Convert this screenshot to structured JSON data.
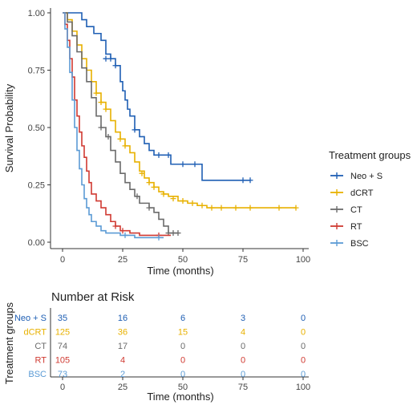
{
  "chart_data": [
    {
      "type": "line",
      "subtype": "kaplan-meier",
      "xlabel": "Time (months)",
      "ylabel": "Survival Probability",
      "xlim": [
        0,
        100
      ],
      "ylim": [
        0,
        1
      ],
      "x_ticks": [
        "0",
        "25",
        "50",
        "75",
        "100"
      ],
      "y_ticks": [
        "0.00",
        "0.25",
        "0.50",
        "0.75",
        "1.00"
      ],
      "x_tick_values": [
        0,
        25,
        50,
        75,
        100
      ],
      "y_tick_values": [
        0,
        0.25,
        0.5,
        0.75,
        1.0
      ],
      "grid": false,
      "legend_title": "Treatment groups",
      "legend_position": "right",
      "series": [
        {
          "name": "Neo + S",
          "color": "#1f5fb4",
          "steps": [
            [
              0,
              1.0
            ],
            [
              3,
              1.0
            ],
            [
              8,
              0.97
            ],
            [
              10,
              0.94
            ],
            [
              13,
              0.91
            ],
            [
              16,
              0.88
            ],
            [
              18,
              0.82
            ],
            [
              20,
              0.8
            ],
            [
              22,
              0.77
            ],
            [
              24,
              0.7
            ],
            [
              25,
              0.66
            ],
            [
              26,
              0.62
            ],
            [
              27,
              0.58
            ],
            [
              28,
              0.55
            ],
            [
              30,
              0.49
            ],
            [
              32,
              0.46
            ],
            [
              34,
              0.43
            ],
            [
              36,
              0.4
            ],
            [
              38,
              0.38
            ],
            [
              45,
              0.34
            ],
            [
              58,
              0.27
            ],
            [
              78,
              0.27
            ]
          ],
          "censored": [
            [
              18,
              0.8
            ],
            [
              20,
              0.8
            ],
            [
              22,
              0.77
            ],
            [
              30,
              0.49
            ],
            [
              40,
              0.38
            ],
            [
              44,
              0.38
            ],
            [
              50,
              0.34
            ],
            [
              55,
              0.34
            ],
            [
              75,
              0.27
            ],
            [
              78,
              0.27
            ]
          ]
        },
        {
          "name": "dCRT",
          "color": "#e8b100",
          "steps": [
            [
              0,
              1.0
            ],
            [
              2,
              0.97
            ],
            [
              4,
              0.92
            ],
            [
              6,
              0.86
            ],
            [
              8,
              0.8
            ],
            [
              10,
              0.75
            ],
            [
              12,
              0.7
            ],
            [
              14,
              0.65
            ],
            [
              16,
              0.61
            ],
            [
              18,
              0.58
            ],
            [
              20,
              0.53
            ],
            [
              22,
              0.48
            ],
            [
              24,
              0.45
            ],
            [
              26,
              0.42
            ],
            [
              28,
              0.39
            ],
            [
              30,
              0.35
            ],
            [
              32,
              0.31
            ],
            [
              34,
              0.28
            ],
            [
              36,
              0.26
            ],
            [
              38,
              0.24
            ],
            [
              40,
              0.22
            ],
            [
              42,
              0.21
            ],
            [
              44,
              0.2
            ],
            [
              48,
              0.18
            ],
            [
              52,
              0.17
            ],
            [
              56,
              0.16
            ],
            [
              60,
              0.15
            ],
            [
              97,
              0.15
            ]
          ],
          "censored": [
            [
              14,
              0.65
            ],
            [
              16,
              0.61
            ],
            [
              18,
              0.58
            ],
            [
              24,
              0.45
            ],
            [
              26,
              0.42
            ],
            [
              33,
              0.3
            ],
            [
              36,
              0.26
            ],
            [
              38,
              0.24
            ],
            [
              42,
              0.21
            ],
            [
              46,
              0.19
            ],
            [
              50,
              0.18
            ],
            [
              54,
              0.17
            ],
            [
              58,
              0.16
            ],
            [
              62,
              0.15
            ],
            [
              66,
              0.15
            ],
            [
              72,
              0.15
            ],
            [
              78,
              0.15
            ],
            [
              90,
              0.15
            ],
            [
              97,
              0.15
            ]
          ]
        },
        {
          "name": "CT",
          "color": "#6b6b6b",
          "steps": [
            [
              0,
              1.0
            ],
            [
              2,
              0.96
            ],
            [
              4,
              0.9
            ],
            [
              6,
              0.83
            ],
            [
              8,
              0.76
            ],
            [
              10,
              0.7
            ],
            [
              12,
              0.63
            ],
            [
              14,
              0.55
            ],
            [
              16,
              0.5
            ],
            [
              18,
              0.46
            ],
            [
              20,
              0.4
            ],
            [
              22,
              0.35
            ],
            [
              24,
              0.3
            ],
            [
              26,
              0.26
            ],
            [
              28,
              0.23
            ],
            [
              30,
              0.2
            ],
            [
              32,
              0.17
            ],
            [
              36,
              0.15
            ],
            [
              38,
              0.13
            ],
            [
              40,
              0.1
            ],
            [
              42,
              0.07
            ],
            [
              44,
              0.04
            ],
            [
              48,
              0.04
            ]
          ],
          "censored": [
            [
              16,
              0.5
            ],
            [
              19,
              0.46
            ],
            [
              31,
              0.2
            ],
            [
              36,
              0.15
            ],
            [
              44,
              0.04
            ],
            [
              46,
              0.04
            ],
            [
              48,
              0.04
            ]
          ]
        },
        {
          "name": "RT",
          "color": "#d03a32",
          "steps": [
            [
              0,
              1.0
            ],
            [
              1,
              0.95
            ],
            [
              2,
              0.88
            ],
            [
              3,
              0.8
            ],
            [
              4,
              0.72
            ],
            [
              5,
              0.62
            ],
            [
              6,
              0.55
            ],
            [
              7,
              0.48
            ],
            [
              8,
              0.42
            ],
            [
              9,
              0.37
            ],
            [
              10,
              0.31
            ],
            [
              11,
              0.26
            ],
            [
              12,
              0.21
            ],
            [
              14,
              0.18
            ],
            [
              16,
              0.15
            ],
            [
              18,
              0.12
            ],
            [
              20,
              0.09
            ],
            [
              22,
              0.07
            ],
            [
              24,
              0.05
            ],
            [
              28,
              0.04
            ],
            [
              32,
              0.03
            ],
            [
              45,
              0.03
            ]
          ],
          "censored": [
            [
              22,
              0.07
            ],
            [
              25,
              0.05
            ],
            [
              40,
              0.03
            ]
          ]
        },
        {
          "name": "BSC",
          "color": "#5b9bd5",
          "steps": [
            [
              0,
              1.0
            ],
            [
              1,
              0.93
            ],
            [
              2,
              0.85
            ],
            [
              3,
              0.74
            ],
            [
              4,
              0.62
            ],
            [
              5,
              0.5
            ],
            [
              6,
              0.4
            ],
            [
              7,
              0.32
            ],
            [
              8,
              0.25
            ],
            [
              9,
              0.19
            ],
            [
              10,
              0.15
            ],
            [
              11,
              0.12
            ],
            [
              12,
              0.09
            ],
            [
              14,
              0.07
            ],
            [
              16,
              0.05
            ],
            [
              18,
              0.04
            ],
            [
              24,
              0.03
            ],
            [
              30,
              0.02
            ],
            [
              42,
              0.02
            ]
          ],
          "censored": [
            [
              26,
              0.03
            ],
            [
              40,
              0.02
            ]
          ]
        }
      ]
    },
    {
      "type": "table",
      "title": "Number at Risk",
      "xlabel": "Time (months)",
      "ylabel": "Treatment groups",
      "time_points": [
        "0",
        "25",
        "50",
        "75",
        "100"
      ],
      "rows": [
        {
          "group": "Neo + S",
          "color": "#1f5fb4",
          "values": [
            "35",
            "16",
            "6",
            "3",
            "0"
          ]
        },
        {
          "group": "dCRT",
          "color": "#e8b100",
          "values": [
            "125",
            "36",
            "15",
            "4",
            "0"
          ]
        },
        {
          "group": "CT",
          "color": "#6b6b6b",
          "values": [
            "74",
            "17",
            "0",
            "0",
            "0"
          ]
        },
        {
          "group": "RT",
          "color": "#d03a32",
          "values": [
            "105",
            "4",
            "0",
            "0",
            "0"
          ]
        },
        {
          "group": "BSC",
          "color": "#5b9bd5",
          "values": [
            "73",
            "2",
            "0",
            "0",
            "0"
          ]
        }
      ]
    }
  ]
}
